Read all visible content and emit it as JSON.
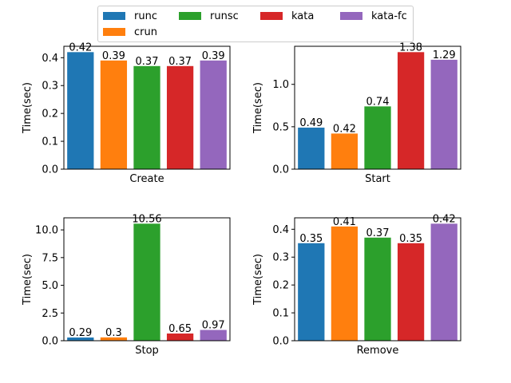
{
  "chart_data": {
    "type": "bar",
    "legend": {
      "placement": "top-center",
      "entries": [
        {
          "name": "runc",
          "color": "#1f77b4"
        },
        {
          "name": "crun",
          "color": "#ff7f0e"
        },
        {
          "name": "runsc",
          "color": "#2ca02c"
        },
        {
          "name": "kata",
          "color": "#d62728"
        },
        {
          "name": "kata-fc",
          "color": "#9467bd"
        }
      ]
    },
    "grid": false,
    "panels": [
      {
        "xlabel": "Create",
        "ylabel": "Time(sec)",
        "ylim": [
          0,
          0.441
        ],
        "yticks": [
          "0.0",
          "0.1",
          "0.2",
          "0.3",
          "0.4"
        ],
        "ytick_values": [
          0,
          0.1,
          0.2,
          0.3,
          0.4
        ],
        "values": [
          0.42,
          0.39,
          0.37,
          0.37,
          0.39
        ],
        "labels": [
          "0.42",
          "0.39",
          "0.37",
          "0.37",
          "0.39"
        ]
      },
      {
        "xlabel": "Start",
        "ylabel": "Time(sec)",
        "ylim": [
          0,
          1.449
        ],
        "yticks": [
          "0.0",
          "0.5",
          "1.0"
        ],
        "ytick_values": [
          0,
          0.5,
          1.0
        ],
        "values": [
          0.49,
          0.42,
          0.74,
          1.38,
          1.29
        ],
        "labels": [
          "0.49",
          "0.42",
          "0.74",
          "1.38",
          "1.29"
        ]
      },
      {
        "xlabel": "Stop",
        "ylabel": "Time(sec)",
        "ylim": [
          0,
          11.088
        ],
        "yticks": [
          "0.0",
          "2.5",
          "5.0",
          "7.5",
          "10.0"
        ],
        "ytick_values": [
          0,
          2.5,
          5.0,
          7.5,
          10.0
        ],
        "values": [
          0.29,
          0.3,
          10.56,
          0.65,
          0.97
        ],
        "labels": [
          "0.29",
          "0.3",
          "10.56",
          "0.65",
          "0.97"
        ]
      },
      {
        "xlabel": "Remove",
        "ylabel": "Time(sec)",
        "ylim": [
          0,
          0.441
        ],
        "yticks": [
          "0.0",
          "0.1",
          "0.2",
          "0.3",
          "0.4"
        ],
        "ytick_values": [
          0,
          0.1,
          0.2,
          0.3,
          0.4
        ],
        "values": [
          0.35,
          0.41,
          0.37,
          0.35,
          0.42
        ],
        "labels": [
          "0.35",
          "0.41",
          "0.37",
          "0.35",
          "0.42"
        ]
      }
    ]
  }
}
